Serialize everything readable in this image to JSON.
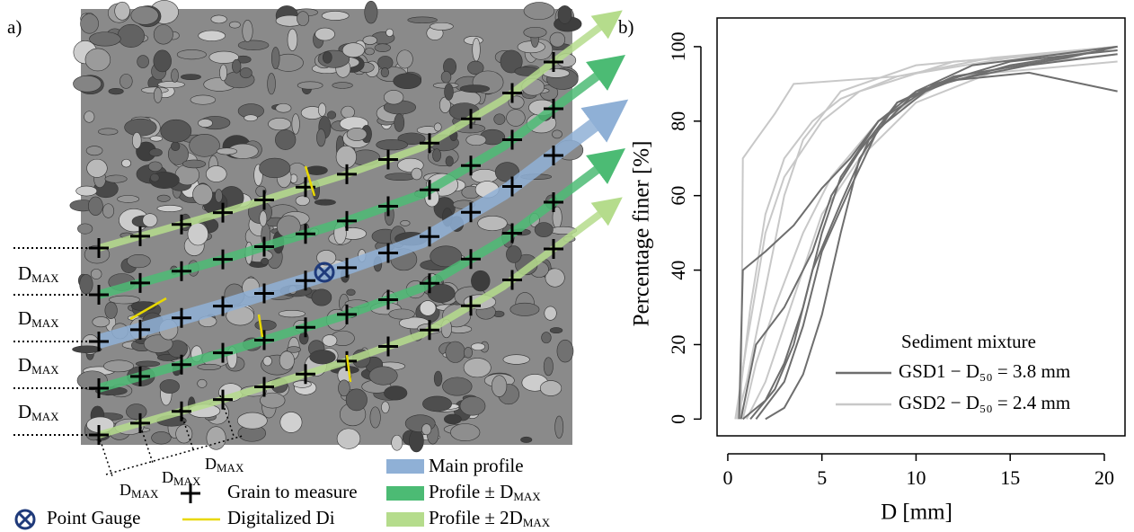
{
  "panel_a": {
    "label": "a)",
    "dmax": {
      "base": "D",
      "sub": "MAX"
    },
    "legend": {
      "main_profile": "Main profile",
      "grain": "Grain to measure",
      "profile_d": {
        "text": "Profile ± D",
        "sub": "MAX"
      },
      "point_gauge": "Point Gauge",
      "digitalized": "Digitalized Di",
      "profile_2d": {
        "text": "Profile ± 2D",
        "sub": "MAX"
      }
    }
  },
  "chart_data": {
    "type": "line",
    "label": "b)",
    "xlabel": "D [mm]",
    "ylabel": "Percentage finer [%]",
    "legend_title": "Sediment mixture",
    "xlim": [
      -0.57,
      21.1
    ],
    "ylim": [
      -4.5,
      107.7
    ],
    "xticks": [
      0,
      5,
      10,
      15,
      20
    ],
    "yticks": [
      0,
      20,
      40,
      60,
      80,
      100
    ],
    "series": [
      {
        "name": "GSD1 − D₅₀ = 3.8 mm",
        "color": "#6e6e6e",
        "curves": [
          {
            "x": [
              0.8,
              2,
              3,
              4,
              5,
              6,
              8,
              10,
              15,
              20
            ],
            "values": [
              0,
              5,
              15,
              30,
              50,
              65,
              80,
              88,
              95,
              99
            ]
          },
          {
            "x": [
              0.7,
              1.5,
              3,
              4.5,
              5.5,
              7,
              9,
              12,
              18,
              20.7
            ],
            "values": [
              0,
              20,
              30,
              45,
              60,
              72,
              85,
              92,
              97,
              100
            ]
          },
          {
            "x": [
              1.2,
              2.5,
              3.5,
              4.5,
              6,
              7.5,
              10,
              13,
              20.7
            ],
            "values": [
              0,
              8,
              20,
              40,
              58,
              75,
              88,
              95,
              100
            ]
          },
          {
            "x": [
              0.6,
              0.8,
              2,
              3.5,
              5,
              6.5,
              8,
              11,
              16,
              20.7
            ],
            "values": [
              0,
              40,
              45,
              52,
              62,
              70,
              80,
              90,
              95,
              98
            ]
          },
          {
            "x": [
              2,
              3,
              4,
              5,
              6,
              7,
              9,
              12,
              16,
              20.7
            ],
            "values": [
              0,
              3,
              12,
              28,
              50,
              70,
              85,
              91,
              93,
              88
            ]
          },
          {
            "x": [
              1.5,
              3,
              4,
              5,
              6.5,
              8,
              11,
              15,
              20.7
            ],
            "values": [
              0,
              10,
              25,
              45,
              62,
              78,
              90,
              96,
              99
            ]
          }
        ]
      },
      {
        "name": "GSD2 − D₅₀ = 2.4 mm",
        "color": "#c8c8c8",
        "curves": [
          {
            "x": [
              0.5,
              1,
              2,
              3,
              4,
              6,
              10,
              20.7
            ],
            "values": [
              0,
              10,
              35,
              60,
              75,
              88,
              95,
              100
            ]
          },
          {
            "x": [
              0.7,
              0.8,
              1.5,
              2.5,
              3.5,
              9,
              15,
              20.7
            ],
            "values": [
              0,
              70,
              75,
              82,
              90,
              92,
              97,
              100
            ]
          },
          {
            "x": [
              0.4,
              1,
              2,
              3,
              5,
              7,
              12,
              20.7
            ],
            "values": [
              0,
              20,
              50,
              65,
              80,
              88,
              96,
              99
            ]
          },
          {
            "x": [
              0.8,
              1.5,
              2.5,
              4,
              5.5,
              8,
              12,
              20.7
            ],
            "values": [
              0,
              15,
              30,
              50,
              65,
              80,
              92,
              96
            ]
          },
          {
            "x": [
              1,
              2,
              3,
              4,
              5,
              7,
              10,
              15,
              20.7
            ],
            "values": [
              0,
              10,
              25,
              40,
              55,
              70,
              85,
              95,
              98
            ]
          },
          {
            "x": [
              0.5,
              1.2,
              2,
              3,
              4.5,
              6,
              9,
              14,
              20.7
            ],
            "values": [
              0,
              30,
              55,
              70,
              80,
              86,
              92,
              97,
              100
            ]
          }
        ]
      }
    ]
  }
}
